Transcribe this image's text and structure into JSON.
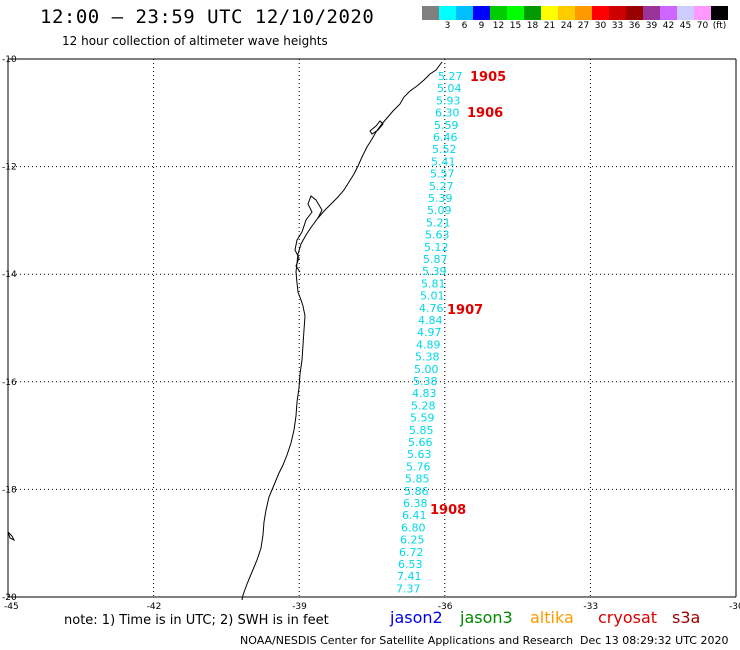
{
  "header": {
    "title": "12:00 – 23:59 UTC 12/10/2020",
    "subtitle": "12 hour collection of altimeter wave heights"
  },
  "colorbar": {
    "colors": [
      "#808080",
      "#00ffff",
      "#00bfff",
      "#0000ff",
      "#00cc00",
      "#00ff00",
      "#009900",
      "#ffff00",
      "#ffcc00",
      "#ff9900",
      "#ff0000",
      "#cc0000",
      "#990000",
      "#993399",
      "#cc66ff",
      "#ccccff",
      "#ff99ff",
      "#000000"
    ],
    "labels": [
      "3",
      "6",
      "9",
      "12",
      "15",
      "18",
      "21",
      "24",
      "27",
      "30",
      "33",
      "36",
      "39",
      "42",
      "45",
      "70",
      "(ft)"
    ]
  },
  "axes": {
    "x_ticks": [
      "-45",
      "-42",
      "-39",
      "-36",
      "-33",
      "-30"
    ],
    "y_ticks": [
      "-10",
      "-12",
      "-14",
      "-16",
      "-18",
      "-20"
    ]
  },
  "swh_values": [
    "5.27",
    "5.04",
    "5.93",
    "6.30",
    "5.59",
    "6.46",
    "5.52",
    "5.41",
    "5.57",
    "5.27",
    "5.39",
    "5.09",
    "5.21",
    "5.63",
    "5.12",
    "5.87",
    "5.39",
    "5.81",
    "5.01",
    "4.76",
    "4.84",
    "4.97",
    "4.89",
    "5.38",
    "5.00",
    "5.38",
    "4.83",
    "5.28",
    "5.59",
    "5.85",
    "5.66",
    "5.63",
    "5.76",
    "5.85",
    "5.86",
    "6.38",
    "6.41",
    "6.80",
    "6.25",
    "6.72",
    "6.53",
    "7.41",
    "7.37"
  ],
  "hour_labels": [
    "1905",
    "1906",
    "1907",
    "1908"
  ],
  "note": "note: 1) Time is in UTC; 2) SWH is in feet",
  "legend": [
    {
      "name": "jason2",
      "color": "#0000ee"
    },
    {
      "name": "jason3",
      "color": "#008800"
    },
    {
      "name": "altika",
      "color": "#ff9900"
    },
    {
      "name": "cryosat",
      "color": "#dd0000"
    },
    {
      "name": "s3a",
      "color": "#990000"
    }
  ],
  "footer": {
    "credit": "NOAA/NESDIS Center for Satellite Applications and Research",
    "timestamp": "Dec 13 08:29:32 UTC 2020"
  }
}
